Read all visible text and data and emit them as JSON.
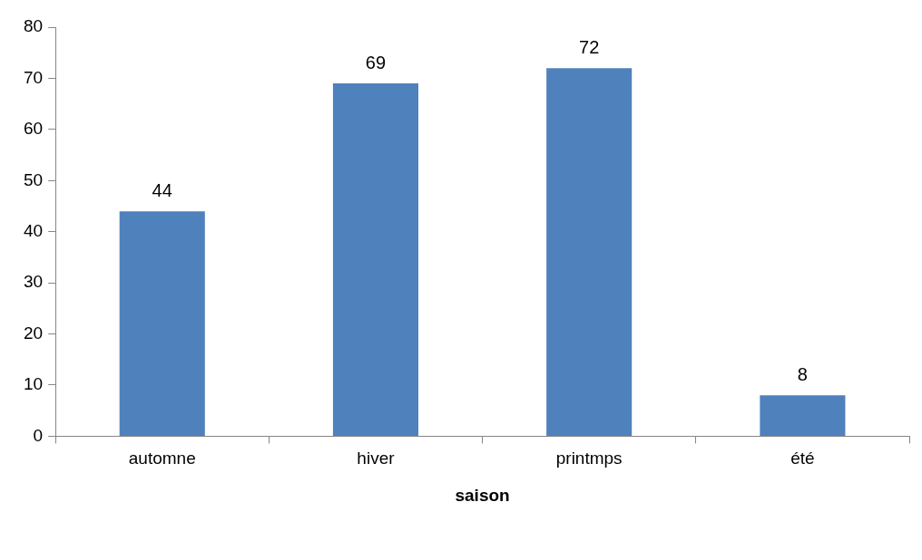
{
  "chart_data": {
    "type": "bar",
    "xlabel": "saison",
    "categories": [
      "automne",
      "hiver",
      "printmps",
      "été"
    ],
    "values": [
      44,
      69,
      72,
      8
    ],
    "color": "#4f81bd",
    "ylim": [
      0,
      80
    ],
    "yticks": [
      0,
      10,
      20,
      30,
      40,
      50,
      60,
      70,
      80
    ],
    "grid": false,
    "data_labels": true
  }
}
